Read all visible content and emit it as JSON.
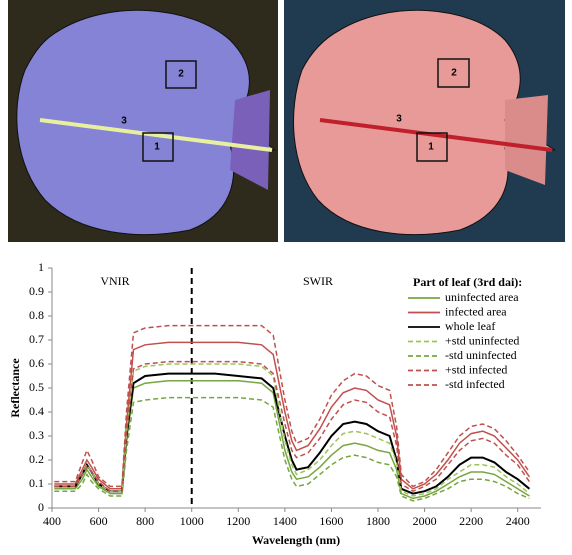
{
  "images": [
    {
      "labels": [
        "2",
        "3",
        "1"
      ]
    },
    {
      "labels": [
        "2",
        "3",
        "1"
      ]
    }
  ],
  "chart_data": {
    "type": "line",
    "y_label": "Reflectance",
    "x_label": "Wavelength (nm)",
    "annotations": [
      "VNIR",
      "SWIR"
    ],
    "vline": 1000,
    "legend_title": "Part of leaf (3rd dai):",
    "legend": "upper right",
    "xlim": [
      400,
      2500
    ],
    "xticks": [
      400,
      600,
      800,
      1000,
      1200,
      1400,
      1600,
      1800,
      2000,
      2200,
      2400
    ],
    "ylim": [
      0,
      1
    ],
    "yticks": [
      0,
      0.1,
      0.2,
      0.3,
      0.4,
      0.5,
      0.6,
      0.7,
      0.8,
      0.9,
      1
    ],
    "x": [
      410,
      450,
      500,
      530,
      550,
      570,
      600,
      650,
      700,
      720,
      750,
      800,
      900,
      1000,
      1100,
      1200,
      1300,
      1350,
      1400,
      1430,
      1450,
      1500,
      1550,
      1600,
      1650,
      1700,
      1750,
      1800,
      1850,
      1880,
      1900,
      1950,
      2000,
      2050,
      2100,
      2150,
      2200,
      2250,
      2300,
      2350,
      2400,
      2450
    ],
    "series": [
      {
        "name": "uninfected area",
        "color": "#77a640",
        "dashed": false,
        "values": [
          0.08,
          0.08,
          0.08,
          0.12,
          0.16,
          0.13,
          0.09,
          0.06,
          0.06,
          0.28,
          0.5,
          0.52,
          0.53,
          0.53,
          0.53,
          0.53,
          0.52,
          0.48,
          0.24,
          0.15,
          0.12,
          0.13,
          0.17,
          0.22,
          0.26,
          0.27,
          0.26,
          0.24,
          0.23,
          0.16,
          0.06,
          0.04,
          0.05,
          0.07,
          0.1,
          0.13,
          0.15,
          0.15,
          0.14,
          0.11,
          0.08,
          0.05
        ]
      },
      {
        "name": "infected area",
        "color": "#c0504d",
        "dashed": false,
        "values": [
          0.1,
          0.1,
          0.1,
          0.16,
          0.2,
          0.17,
          0.12,
          0.08,
          0.08,
          0.35,
          0.66,
          0.68,
          0.69,
          0.69,
          0.69,
          0.69,
          0.68,
          0.64,
          0.4,
          0.28,
          0.24,
          0.26,
          0.33,
          0.42,
          0.48,
          0.5,
          0.49,
          0.45,
          0.43,
          0.3,
          0.12,
          0.08,
          0.1,
          0.14,
          0.2,
          0.27,
          0.31,
          0.32,
          0.3,
          0.25,
          0.2,
          0.13
        ]
      },
      {
        "name": "whole leaf",
        "color": "#000000",
        "dashed": false,
        "values": [
          0.09,
          0.09,
          0.09,
          0.14,
          0.18,
          0.15,
          0.1,
          0.07,
          0.07,
          0.3,
          0.52,
          0.55,
          0.56,
          0.56,
          0.56,
          0.55,
          0.54,
          0.5,
          0.3,
          0.2,
          0.16,
          0.17,
          0.23,
          0.3,
          0.35,
          0.36,
          0.35,
          0.32,
          0.3,
          0.2,
          0.08,
          0.06,
          0.07,
          0.09,
          0.13,
          0.18,
          0.21,
          0.21,
          0.19,
          0.15,
          0.12,
          0.08
        ]
      },
      {
        "name": "+std uninfected",
        "color": "#9bc55a",
        "dashed": true,
        "values": [
          0.09,
          0.09,
          0.09,
          0.14,
          0.18,
          0.15,
          0.1,
          0.07,
          0.07,
          0.31,
          0.57,
          0.59,
          0.6,
          0.6,
          0.6,
          0.6,
          0.59,
          0.55,
          0.28,
          0.18,
          0.14,
          0.16,
          0.2,
          0.26,
          0.31,
          0.32,
          0.31,
          0.29,
          0.27,
          0.19,
          0.07,
          0.05,
          0.06,
          0.08,
          0.12,
          0.15,
          0.18,
          0.18,
          0.17,
          0.13,
          0.1,
          0.06
        ]
      },
      {
        "name": "-std uninfected",
        "color": "#77a640",
        "dashed": true,
        "values": [
          0.07,
          0.07,
          0.07,
          0.1,
          0.14,
          0.11,
          0.08,
          0.05,
          0.05,
          0.24,
          0.44,
          0.45,
          0.46,
          0.46,
          0.46,
          0.46,
          0.45,
          0.42,
          0.2,
          0.12,
          0.09,
          0.1,
          0.14,
          0.18,
          0.21,
          0.22,
          0.21,
          0.19,
          0.18,
          0.13,
          0.05,
          0.03,
          0.04,
          0.06,
          0.08,
          0.11,
          0.12,
          0.12,
          0.11,
          0.09,
          0.06,
          0.04
        ]
      },
      {
        "name": "+std infected",
        "color": "#c0504d",
        "dashed": true,
        "values": [
          0.11,
          0.11,
          0.11,
          0.19,
          0.24,
          0.2,
          0.13,
          0.09,
          0.09,
          0.4,
          0.73,
          0.75,
          0.76,
          0.76,
          0.76,
          0.76,
          0.76,
          0.72,
          0.45,
          0.32,
          0.27,
          0.29,
          0.37,
          0.47,
          0.53,
          0.56,
          0.55,
          0.51,
          0.49,
          0.34,
          0.14,
          0.09,
          0.11,
          0.16,
          0.23,
          0.3,
          0.34,
          0.35,
          0.33,
          0.28,
          0.22,
          0.15
        ]
      },
      {
        "name": "-std infected",
        "color": "#c0504d",
        "dashed": true,
        "values": [
          0.09,
          0.09,
          0.09,
          0.14,
          0.17,
          0.15,
          0.11,
          0.07,
          0.07,
          0.31,
          0.58,
          0.6,
          0.61,
          0.61,
          0.61,
          0.61,
          0.6,
          0.56,
          0.35,
          0.24,
          0.21,
          0.23,
          0.29,
          0.37,
          0.43,
          0.45,
          0.44,
          0.4,
          0.38,
          0.26,
          0.1,
          0.07,
          0.09,
          0.12,
          0.18,
          0.24,
          0.28,
          0.29,
          0.27,
          0.22,
          0.18,
          0.11
        ]
      }
    ]
  }
}
